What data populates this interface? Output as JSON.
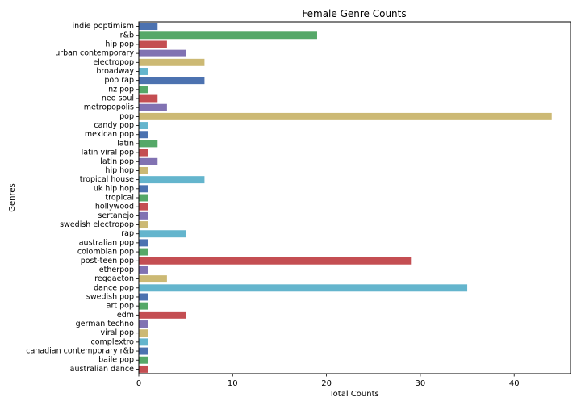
{
  "chart_data": {
    "type": "bar",
    "orientation": "horizontal",
    "title": "Female Genre Counts",
    "xlabel": "Total Counts",
    "ylabel": "Genres",
    "xlim": [
      0,
      46
    ],
    "xticks": [
      0,
      10,
      20,
      30,
      40
    ],
    "grid": false,
    "categories": [
      "indie poptimism",
      "r&b",
      "hip pop",
      "urban contemporary",
      "electropop",
      "broadway",
      "pop rap",
      "nz pop",
      "neo soul",
      "metropopolis",
      "pop",
      "candy pop",
      "mexican pop",
      "latin",
      "latin viral pop",
      "latin pop",
      "hip hop",
      "tropical house",
      "uk hip hop",
      "tropical",
      "hollywood",
      "sertanejo",
      "swedish electropop",
      "rap",
      "australian pop",
      "colombian pop",
      "post-teen pop",
      "etherpop",
      "reggaeton",
      "dance pop",
      "swedish pop",
      "art pop",
      "edm",
      "german techno",
      "viral pop",
      "complextro",
      "canadian contemporary r&b",
      "baile pop",
      "australian dance"
    ],
    "values": [
      2,
      19,
      3,
      5,
      7,
      1,
      7,
      1,
      2,
      3,
      44,
      1,
      1,
      2,
      1,
      2,
      1,
      7,
      1,
      1,
      1,
      1,
      1,
      5,
      1,
      1,
      29,
      1,
      3,
      35,
      1,
      1,
      5,
      1,
      1,
      1,
      1,
      1,
      1
    ],
    "palette": [
      "#4c72b0",
      "#55a868",
      "#c44e52",
      "#8172b2",
      "#ccb974",
      "#64b5cd"
    ]
  }
}
